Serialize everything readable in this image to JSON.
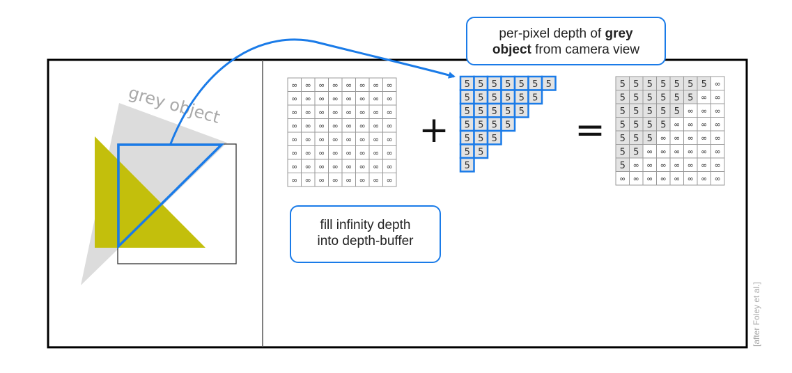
{
  "scene": {
    "grey_label": "grey object"
  },
  "callouts": {
    "top": {
      "prefix": "per-pixel depth of ",
      "bold1": "grey",
      "bold2": "object",
      "suffix": " from camera view"
    },
    "fill": {
      "line1": "fill infinity depth",
      "line2": "into depth-buffer"
    }
  },
  "operators": {
    "plus": "+",
    "equals": "="
  },
  "grids": {
    "size": 8,
    "infinity_symbol": "∞",
    "depth_value": "5",
    "buffer": [
      [
        "∞",
        "∞",
        "∞",
        "∞",
        "∞",
        "∞",
        "∞",
        "∞"
      ],
      [
        "∞",
        "∞",
        "∞",
        "∞",
        "∞",
        "∞",
        "∞",
        "∞"
      ],
      [
        "∞",
        "∞",
        "∞",
        "∞",
        "∞",
        "∞",
        "∞",
        "∞"
      ],
      [
        "∞",
        "∞",
        "∞",
        "∞",
        "∞",
        "∞",
        "∞",
        "∞"
      ],
      [
        "∞",
        "∞",
        "∞",
        "∞",
        "∞",
        "∞",
        "∞",
        "∞"
      ],
      [
        "∞",
        "∞",
        "∞",
        "∞",
        "∞",
        "∞",
        "∞",
        "∞"
      ],
      [
        "∞",
        "∞",
        "∞",
        "∞",
        "∞",
        "∞",
        "∞",
        "∞"
      ],
      [
        "∞",
        "∞",
        "∞",
        "∞",
        "∞",
        "∞",
        "∞",
        "∞"
      ]
    ],
    "grey_depth": [
      [
        "5",
        "5",
        "5",
        "5",
        "5",
        "5",
        "5"
      ],
      [
        "5",
        "5",
        "5",
        "5",
        "5",
        "5"
      ],
      [
        "5",
        "5",
        "5",
        "5",
        "5"
      ],
      [
        "5",
        "5",
        "5",
        "5"
      ],
      [
        "5",
        "5",
        "5"
      ],
      [
        "5",
        "5"
      ],
      [
        "5"
      ]
    ],
    "result": [
      [
        "5",
        "5",
        "5",
        "5",
        "5",
        "5",
        "5",
        "∞"
      ],
      [
        "5",
        "5",
        "5",
        "5",
        "5",
        "5",
        "∞",
        "∞"
      ],
      [
        "5",
        "5",
        "5",
        "5",
        "5",
        "∞",
        "∞",
        "∞"
      ],
      [
        "5",
        "5",
        "5",
        "5",
        "∞",
        "∞",
        "∞",
        "∞"
      ],
      [
        "5",
        "5",
        "5",
        "∞",
        "∞",
        "∞",
        "∞",
        "∞"
      ],
      [
        "5",
        "5",
        "∞",
        "∞",
        "∞",
        "∞",
        "∞",
        "∞"
      ],
      [
        "5",
        "∞",
        "∞",
        "∞",
        "∞",
        "∞",
        "∞",
        "∞"
      ],
      [
        "∞",
        "∞",
        "∞",
        "∞",
        "∞",
        "∞",
        "∞",
        "∞"
      ]
    ]
  },
  "colors": {
    "accent_blue": "#1a7be8",
    "yellow_object": "#c3bf0c",
    "grey_object": "#dcdcdc",
    "filled_cell": "#e3e3e3",
    "grid_line": "#9a9a9a"
  },
  "credit": "[after Foley et al.]"
}
